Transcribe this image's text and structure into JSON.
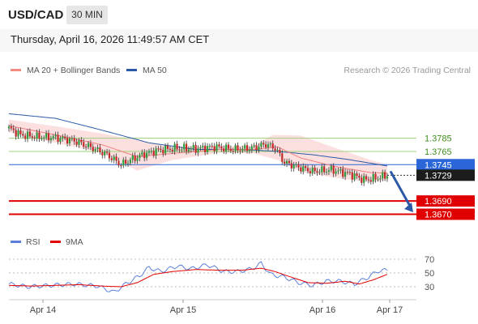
{
  "header": {
    "pair": "USD/CAD",
    "timeframe": "30 MIN",
    "datetime": "Thursday, April 16, 2026 11:49:57 AM CET"
  },
  "chart_data": {
    "type": "candlestick",
    "legend": [
      {
        "label": "MA 20 + Bollinger Bands",
        "color": "#f28b82"
      },
      {
        "label": "MA 50",
        "color": "#2a5aa5"
      }
    ],
    "credit": "Research © 2026 Trading Central",
    "ylim": [
      1.3651,
      1.3847
    ],
    "x_ticks": [
      "Apr 14",
      "Apr 15",
      "Apr 16",
      "Apr 17"
    ],
    "price_levels": [
      {
        "value": 1.3785,
        "label": "1.3785",
        "kind": "resistance"
      },
      {
        "value": 1.3765,
        "label": "1.3765",
        "kind": "resistance"
      },
      {
        "value": 1.3745,
        "label": "1.3745",
        "kind": "pivot"
      },
      {
        "value": 1.3729,
        "label": "1.3729",
        "kind": "last"
      },
      {
        "value": 1.369,
        "label": "1.3690",
        "kind": "target"
      },
      {
        "value": 1.367,
        "label": "1.3670",
        "kind": "target"
      }
    ],
    "close_anchors": [
      [
        0,
        1.38
      ],
      [
        5,
        1.379
      ],
      [
        12,
        1.3787
      ],
      [
        20,
        1.3786
      ],
      [
        28,
        1.3781
      ],
      [
        36,
        1.377
      ],
      [
        42,
        1.376
      ],
      [
        48,
        1.3745
      ],
      [
        52,
        1.3752
      ],
      [
        58,
        1.3761
      ],
      [
        64,
        1.3767
      ],
      [
        72,
        1.377
      ],
      [
        80,
        1.3769
      ],
      [
        88,
        1.3772
      ],
      [
        96,
        1.3768
      ],
      [
        104,
        1.377
      ],
      [
        110,
        1.3776
      ],
      [
        114,
        1.377
      ],
      [
        118,
        1.3748
      ],
      [
        124,
        1.3741
      ],
      [
        130,
        1.3735
      ],
      [
        138,
        1.3737
      ],
      [
        146,
        1.3731
      ],
      [
        152,
        1.3722
      ],
      [
        158,
        1.3725
      ],
      [
        162,
        1.3729
      ]
    ],
    "candles_count": 163,
    "ma20_anchors": [
      [
        0,
        1.3804
      ],
      [
        20,
        1.379
      ],
      [
        40,
        1.3775
      ],
      [
        55,
        1.3757
      ],
      [
        70,
        1.3762
      ],
      [
        90,
        1.3768
      ],
      [
        105,
        1.3768
      ],
      [
        115,
        1.3772
      ],
      [
        125,
        1.3755
      ],
      [
        140,
        1.3742
      ],
      [
        155,
        1.3733
      ],
      [
        162,
        1.3732
      ]
    ],
    "ma50_anchors": [
      [
        0,
        1.3822
      ],
      [
        20,
        1.3815
      ],
      [
        40,
        1.3797
      ],
      [
        60,
        1.3778
      ],
      [
        80,
        1.3768
      ],
      [
        100,
        1.3768
      ],
      [
        115,
        1.3765
      ],
      [
        130,
        1.376
      ],
      [
        145,
        1.3753
      ],
      [
        162,
        1.3743
      ]
    ],
    "bb_upper_anchors": [
      [
        0,
        1.3813
      ],
      [
        20,
        1.3803
      ],
      [
        40,
        1.3792
      ],
      [
        55,
        1.3782
      ],
      [
        70,
        1.3771
      ],
      [
        90,
        1.3773
      ],
      [
        105,
        1.3774
      ],
      [
        113,
        1.379
      ],
      [
        125,
        1.3789
      ],
      [
        140,
        1.377
      ],
      [
        155,
        1.3752
      ],
      [
        162,
        1.3745
      ]
    ],
    "bb_lower_anchors": [
      [
        0,
        1.3794
      ],
      [
        20,
        1.3778
      ],
      [
        40,
        1.3763
      ],
      [
        55,
        1.3736
      ],
      [
        70,
        1.3752
      ],
      [
        90,
        1.3763
      ],
      [
        105,
        1.3762
      ],
      [
        115,
        1.3752
      ],
      [
        125,
        1.3734
      ],
      [
        140,
        1.3725
      ],
      [
        155,
        1.3718
      ],
      [
        162,
        1.3722
      ]
    ],
    "forecast": {
      "from": 1.3735,
      "to": 1.3673
    },
    "rsi": {
      "legend": [
        {
          "label": "RSI",
          "color": "#5b7fdb"
        },
        {
          "label": "9MA",
          "color": "#e00000"
        }
      ],
      "levels": [
        70,
        50,
        30
      ],
      "range": [
        15,
        85
      ],
      "rsi_anchors": [
        [
          0,
          34
        ],
        [
          8,
          30
        ],
        [
          18,
          32
        ],
        [
          28,
          34
        ],
        [
          38,
          31
        ],
        [
          45,
          22
        ],
        [
          50,
          34
        ],
        [
          56,
          46
        ],
        [
          60,
          58
        ],
        [
          65,
          52
        ],
        [
          72,
          60
        ],
        [
          78,
          56
        ],
        [
          85,
          62
        ],
        [
          92,
          52
        ],
        [
          98,
          52
        ],
        [
          104,
          56
        ],
        [
          108,
          64
        ],
        [
          112,
          48
        ],
        [
          118,
          44
        ],
        [
          124,
          36
        ],
        [
          130,
          32
        ],
        [
          136,
          38
        ],
        [
          142,
          38
        ],
        [
          148,
          34
        ],
        [
          154,
          44
        ],
        [
          158,
          53
        ],
        [
          162,
          54
        ]
      ],
      "ma_anchors": [
        [
          0,
          32
        ],
        [
          10,
          31
        ],
        [
          20,
          32
        ],
        [
          30,
          33
        ],
        [
          40,
          31
        ],
        [
          48,
          30
        ],
        [
          55,
          36
        ],
        [
          62,
          48
        ],
        [
          70,
          52
        ],
        [
          80,
          55
        ],
        [
          90,
          54
        ],
        [
          100,
          54
        ],
        [
          108,
          57
        ],
        [
          114,
          52
        ],
        [
          120,
          45
        ],
        [
          128,
          36
        ],
        [
          136,
          35
        ],
        [
          144,
          38
        ],
        [
          150,
          34
        ],
        [
          156,
          40
        ],
        [
          162,
          48
        ]
      ]
    }
  }
}
